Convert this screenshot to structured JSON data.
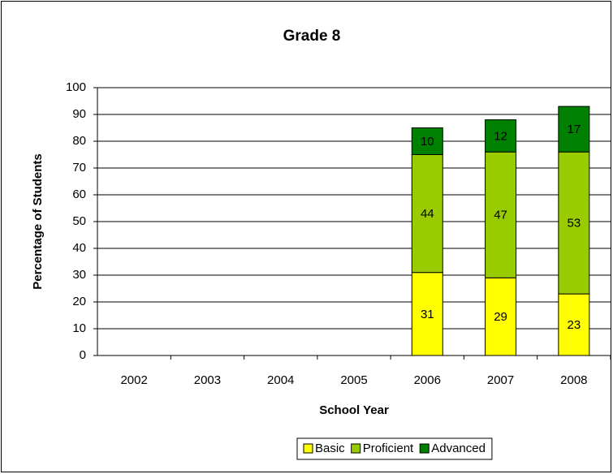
{
  "chart_data": {
    "type": "stacked_bar",
    "title": "Grade 8",
    "x_label": "School Year",
    "y_label": "Percentage of Students",
    "categories": [
      "2002",
      "2003",
      "2004",
      "2005",
      "2006",
      "2007",
      "2008"
    ],
    "series": [
      {
        "name": "Basic",
        "color": "#ffff00",
        "values": [
          null,
          null,
          null,
          null,
          31,
          29,
          23
        ]
      },
      {
        "name": "Proficient",
        "color": "#99cc00",
        "values": [
          null,
          null,
          null,
          null,
          44,
          47,
          53
        ]
      },
      {
        "name": "Advanced",
        "color": "#008000",
        "values": [
          null,
          null,
          null,
          null,
          10,
          12,
          17
        ]
      }
    ],
    "ylim": [
      0,
      100
    ],
    "yticks": [
      0,
      10,
      20,
      30,
      40,
      50,
      60,
      70,
      80,
      90,
      100
    ],
    "grid": true,
    "legend": "bottom"
  }
}
